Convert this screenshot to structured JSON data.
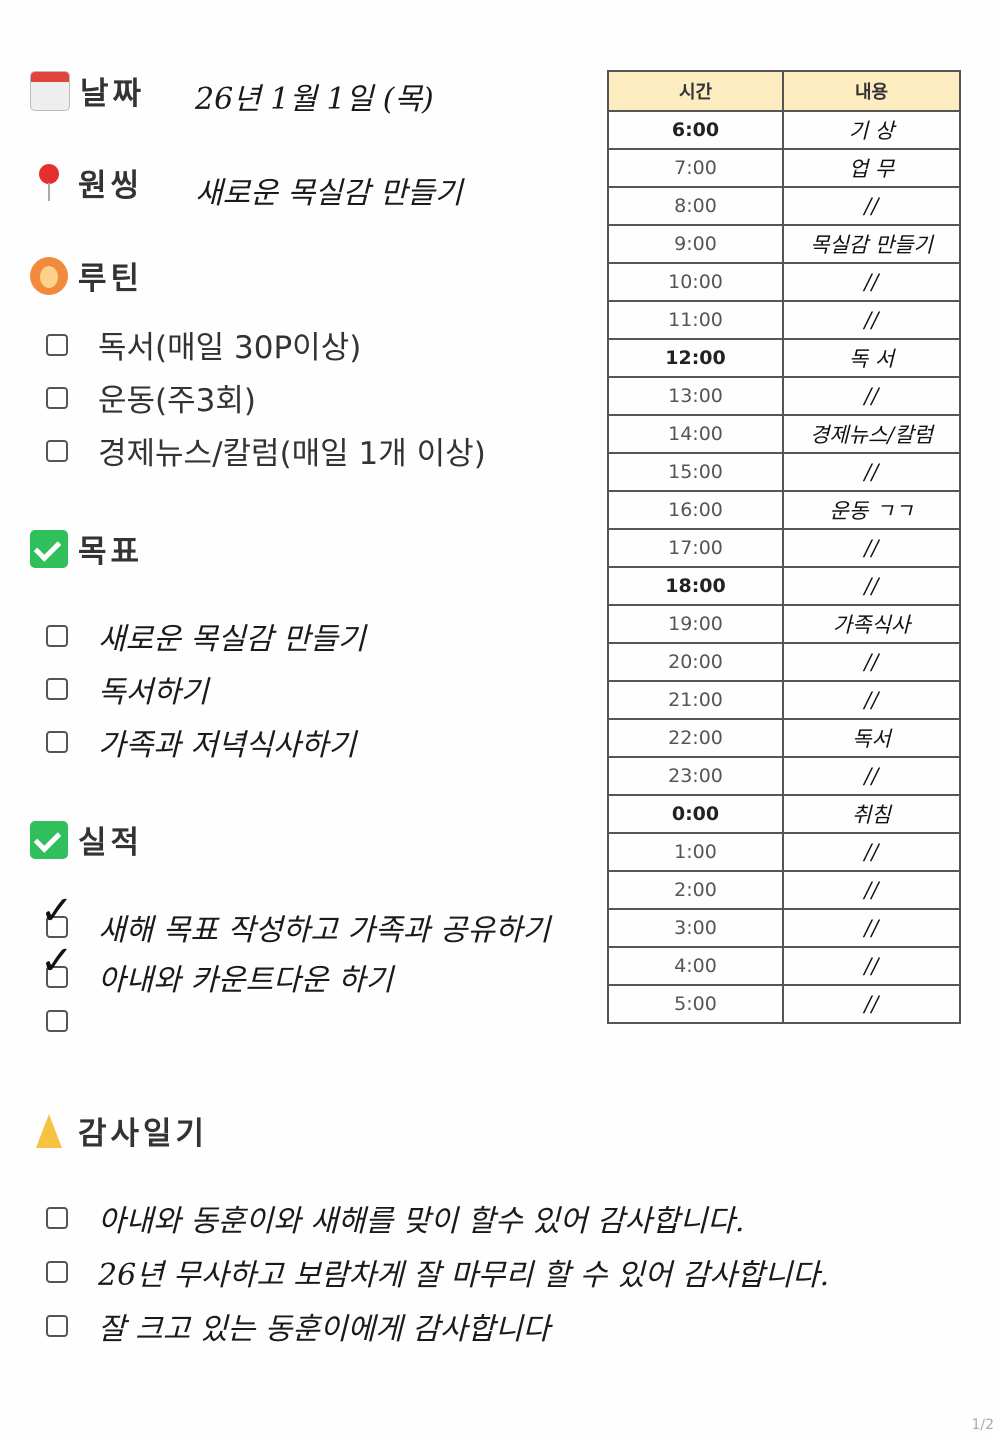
{
  "date": {
    "label": "날짜",
    "icon": "calendar-icon",
    "value": "26년 1월 1일 (목)"
  },
  "one_thing": {
    "label": "원씽",
    "icon": "pushpin-icon",
    "value": "새로운 목실감 만들기"
  },
  "routine": {
    "label": "루틴",
    "icon": "person-gesturing-ok-icon",
    "items": [
      "독서(매일 30P이상)",
      "운동(주3회)",
      "경제뉴스/칼럼(매일 1개 이상)"
    ]
  },
  "goals": {
    "label": "목표",
    "icon": "check-mark-button-icon",
    "items": [
      "새로운 목실감 만들기",
      "독서하기",
      "가족과 저녁식사하기"
    ]
  },
  "achievements": {
    "label": "실적",
    "icon": "check-mark-button-icon",
    "items": [
      {
        "text": "새해 목표 작성하고 가족과 공유하기",
        "checked": true
      },
      {
        "text": "아내와 카운트다운 하기",
        "checked": true
      },
      {
        "text": "",
        "checked": false
      }
    ]
  },
  "gratitude": {
    "label": "감사일기",
    "icon": "folded-hands-icon",
    "items": [
      "아내와 동훈이와 새해를 맞이 할수 있어 감사합니다.",
      "26년 무사하고 보람차게 잘 마무리 할 수 있어 감사합니다.",
      "잘 크고 있는 동훈이에게 감사합니다"
    ]
  },
  "schedule": {
    "headers": [
      "시간",
      "내용"
    ],
    "header_color": "#fcecbf",
    "rows": [
      {
        "time": "6:00",
        "content": "기 상",
        "bold": true
      },
      {
        "time": "7:00",
        "content": "업 무"
      },
      {
        "time": "8:00",
        "content": "//"
      },
      {
        "time": "9:00",
        "content": "목실감 만들기"
      },
      {
        "time": "10:00",
        "content": "//"
      },
      {
        "time": "11:00",
        "content": "//"
      },
      {
        "time": "12:00",
        "content": "독 서",
        "bold": true
      },
      {
        "time": "13:00",
        "content": "//"
      },
      {
        "time": "14:00",
        "content": "경제뉴스/칼럼"
      },
      {
        "time": "15:00",
        "content": "//"
      },
      {
        "time": "16:00",
        "content": "운동 ㄱㄱ"
      },
      {
        "time": "17:00",
        "content": "//"
      },
      {
        "time": "18:00",
        "content": "//",
        "bold": true
      },
      {
        "time": "19:00",
        "content": "가족식사"
      },
      {
        "time": "20:00",
        "content": "//"
      },
      {
        "time": "21:00",
        "content": "//"
      },
      {
        "time": "22:00",
        "content": "독서"
      },
      {
        "time": "23:00",
        "content": "//"
      },
      {
        "time": "0:00",
        "content": "취침",
        "bold": true
      },
      {
        "time": "1:00",
        "content": "//"
      },
      {
        "time": "2:00",
        "content": "//"
      },
      {
        "time": "3:00",
        "content": "//"
      },
      {
        "time": "4:00",
        "content": "//"
      },
      {
        "time": "5:00",
        "content": "//"
      }
    ]
  },
  "page_number": "1/2"
}
